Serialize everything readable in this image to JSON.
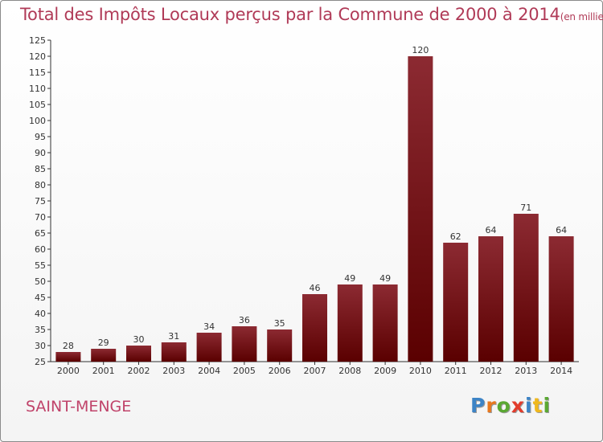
{
  "title": "Total des Impôts Locaux perçus par la Commune de 2000 à 2014",
  "subtitle": "(en milliers d'€)",
  "commune": "SAINT-MENGE",
  "logo": {
    "text": "Proxiti",
    "letters": [
      "P",
      "r",
      "o",
      "x",
      "i",
      "t",
      "i"
    ],
    "colors": [
      "#3d84c6",
      "#e8781e",
      "#5aa832",
      "#e23c2c",
      "#3d84c6",
      "#f0b81c",
      "#5aa832"
    ]
  },
  "colors": {
    "title": "#b03a57",
    "bar_top": "#8c2a32",
    "bar_bottom": "#5a0000",
    "axis": "#333333"
  },
  "chart_data": {
    "type": "bar",
    "title": "Total des Impôts Locaux perçus par la Commune de 2000 à 2014",
    "subtitle": "(en milliers d'€)",
    "categories": [
      "2000",
      "2001",
      "2002",
      "2003",
      "2004",
      "2005",
      "2006",
      "2007",
      "2008",
      "2009",
      "2010",
      "2011",
      "2012",
      "2013",
      "2014"
    ],
    "values": [
      28,
      29,
      30,
      31,
      34,
      36,
      35,
      46,
      49,
      49,
      120,
      62,
      64,
      71,
      64
    ],
    "ylim": [
      25,
      125
    ],
    "yticks": [
      25,
      30,
      35,
      40,
      45,
      50,
      55,
      60,
      65,
      70,
      75,
      80,
      85,
      90,
      95,
      100,
      105,
      110,
      115,
      120,
      125
    ],
    "grid": false,
    "data_labels": true,
    "xlabel": "",
    "ylabel": ""
  }
}
